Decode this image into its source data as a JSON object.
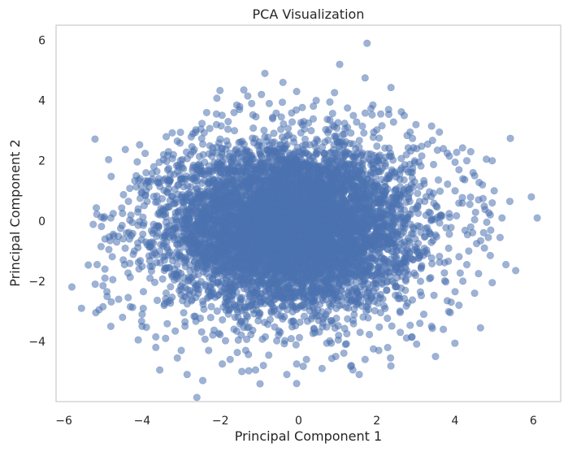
{
  "chart_data": {
    "type": "scatter",
    "title": "PCA Visualization",
    "xlabel": "Principal Component 1",
    "ylabel": "Principal Component 2",
    "xlim": [
      -6.2,
      6.7
    ],
    "ylim": [
      -6.0,
      6.5
    ],
    "xticks": [
      -6,
      -4,
      -2,
      0,
      2,
      4,
      6
    ],
    "yticks": [
      -4,
      -2,
      0,
      2,
      4,
      6
    ],
    "xtick_labels": [
      "−6",
      "−4",
      "−2",
      "0",
      "2",
      "4",
      "6"
    ],
    "ytick_labels": [
      "−4",
      "−2",
      "0",
      "2",
      "4",
      "6"
    ],
    "grid": false,
    "marker_color": "#4c72b0",
    "marker_alpha": 0.55,
    "cloud": {
      "center": [
        -0.2,
        -0.2
      ],
      "x_std": 1.55,
      "y_std": 1.35,
      "n_points": 7000
    },
    "points": [
      [
        1.75,
        5.9
      ],
      [
        1.05,
        5.2
      ],
      [
        1.7,
        4.75
      ],
      [
        -0.4,
        4.6
      ],
      [
        -1.4,
        4.35
      ],
      [
        -1.3,
        4.15
      ],
      [
        -0.05,
        4.3
      ],
      [
        0.8,
        3.95
      ],
      [
        1.9,
        3.85
      ],
      [
        2.3,
        3.7
      ],
      [
        2.1,
        3.55
      ],
      [
        1.4,
        3.5
      ],
      [
        2.7,
        3.5
      ],
      [
        3.0,
        3.2
      ],
      [
        3.4,
        3.15
      ],
      [
        3.6,
        2.95
      ],
      [
        3.7,
        2.4
      ],
      [
        3.3,
        2.55
      ],
      [
        3.8,
        2.25
      ],
      [
        4.0,
        1.95
      ],
      [
        4.4,
        2.3
      ],
      [
        4.8,
        2.05
      ],
      [
        4.5,
        1.5
      ],
      [
        4.2,
        1.4
      ],
      [
        4.7,
        1.2
      ],
      [
        5.0,
        1.0
      ],
      [
        4.95,
        0.6
      ],
      [
        5.4,
        0.65
      ],
      [
        4.9,
        0.2
      ],
      [
        5.2,
        0.1
      ],
      [
        4.4,
        -0.2
      ],
      [
        4.85,
        -0.55
      ],
      [
        5.15,
        -0.55
      ],
      [
        4.55,
        -0.75
      ],
      [
        4.35,
        -1.0
      ],
      [
        4.9,
        -1.15
      ],
      [
        5.3,
        -1.45
      ],
      [
        5.55,
        -1.65
      ],
      [
        4.3,
        -1.45
      ],
      [
        4.95,
        -2.05
      ],
      [
        4.2,
        -2.0
      ],
      [
        4.5,
        -2.4
      ],
      [
        4.1,
        -2.8
      ],
      [
        3.9,
        -2.7
      ],
      [
        3.8,
        -2.65
      ],
      [
        4.65,
        -3.55
      ],
      [
        3.7,
        -3.6
      ],
      [
        3.4,
        -3.5
      ],
      [
        3.5,
        -4.5
      ],
      [
        2.9,
        -3.85
      ],
      [
        2.6,
        -3.7
      ],
      [
        2.05,
        -4.3
      ],
      [
        1.35,
        -4.8
      ],
      [
        1.55,
        -5.1
      ],
      [
        0.95,
        -4.5
      ],
      [
        0.2,
        -4.6
      ],
      [
        -0.05,
        -4.75
      ],
      [
        -0.3,
        -5.1
      ],
      [
        -0.05,
        -5.4
      ],
      [
        -0.9,
        -4.8
      ],
      [
        -1.45,
        -5.0
      ],
      [
        -1.75,
        -4.6
      ],
      [
        -2.45,
        -5.3
      ],
      [
        -2.85,
        -5.1
      ],
      [
        -3.55,
        -4.95
      ],
      [
        -2.3,
        -4.3
      ],
      [
        -3.0,
        -4.3
      ],
      [
        -3.4,
        -3.9
      ],
      [
        -3.65,
        -3.85
      ],
      [
        -4.1,
        -3.95
      ],
      [
        -4.0,
        -3.5
      ],
      [
        -4.8,
        -3.5
      ],
      [
        -4.5,
        -3.2
      ],
      [
        -4.0,
        -3.1
      ],
      [
        -5.1,
        -2.95
      ],
      [
        -5.0,
        -2.85
      ],
      [
        -5.55,
        -2.9
      ],
      [
        -4.6,
        -2.6
      ],
      [
        -4.9,
        -2.35
      ],
      [
        -5.0,
        -2.15
      ],
      [
        -4.75,
        -1.95
      ],
      [
        -5.15,
        -1.45
      ],
      [
        -4.95,
        -1.6
      ],
      [
        -4.45,
        -1.45
      ],
      [
        -4.2,
        -1.0
      ],
      [
        -4.85,
        -0.95
      ],
      [
        -5.05,
        -0.85
      ],
      [
        -4.95,
        -0.6
      ],
      [
        -4.65,
        -0.7
      ],
      [
        -4.4,
        -0.4
      ],
      [
        -4.25,
        -0.05
      ],
      [
        -4.5,
        0.25
      ],
      [
        -4.8,
        0.1
      ],
      [
        -4.35,
        0.65
      ],
      [
        -4.05,
        0.75
      ],
      [
        -3.9,
        1.0
      ],
      [
        -4.15,
        1.5
      ],
      [
        -3.85,
        1.3
      ],
      [
        -3.7,
        1.8
      ],
      [
        -3.45,
        2.2
      ],
      [
        -3.2,
        2.2
      ],
      [
        -2.7,
        2.3
      ],
      [
        -2.45,
        2.55
      ],
      [
        -2.1,
        3.2
      ],
      [
        -2.5,
        3.05
      ],
      [
        -1.8,
        3.3
      ],
      [
        -1.65,
        3.6
      ],
      [
        -1.2,
        3.9
      ],
      [
        -0.75,
        3.9
      ],
      [
        -2.7,
        2.9
      ],
      [
        -2.35,
        3.6
      ],
      [
        5.95,
        0.8
      ],
      [
        6.1,
        0.1
      ],
      [
        4.95,
        2.0
      ],
      [
        4.3,
        2.0
      ],
      [
        4.0,
        1.0
      ],
      [
        3.2,
        -3.1
      ],
      [
        2.35,
        -4.55
      ],
      [
        0.6,
        -4.9
      ],
      [
        -1.1,
        -4.95
      ],
      [
        -1.95,
        -4.75
      ],
      [
        -3.1,
        -4.55
      ],
      [
        -3.65,
        -4.2
      ],
      [
        -4.3,
        -2.85
      ],
      [
        -4.95,
        -1.9
      ],
      [
        -5.2,
        -2.1
      ],
      [
        -4.55,
        -0.25
      ],
      [
        -4.1,
        0.4
      ],
      [
        -4.0,
        0.95
      ],
      [
        -3.9,
        1.6
      ],
      [
        -3.1,
        2.65
      ],
      [
        -2.1,
        3.55
      ],
      [
        -0.95,
        4.2
      ],
      [
        0.45,
        4.0
      ],
      [
        1.25,
        3.75
      ],
      [
        2.85,
        2.95
      ],
      [
        3.55,
        2.35
      ],
      [
        4.1,
        1.7
      ],
      [
        4.6,
        0.7
      ],
      [
        4.75,
        -0.9
      ],
      [
        4.6,
        -1.75
      ],
      [
        4.0,
        -2.35
      ],
      [
        3.1,
        -3.4
      ],
      [
        1.7,
        -4.6
      ],
      [
        1.2,
        -4.1
      ]
    ]
  }
}
